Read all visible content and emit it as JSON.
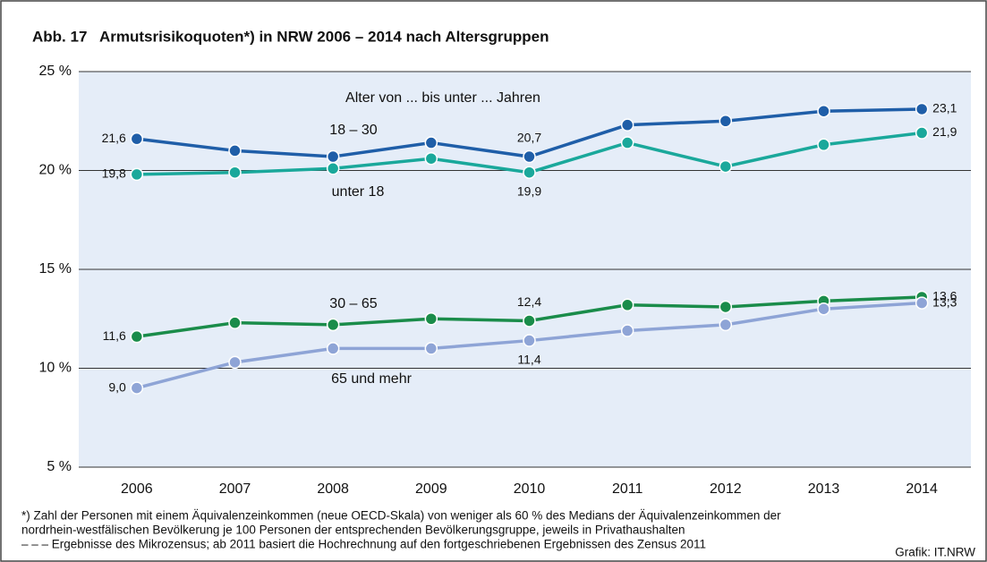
{
  "chart_data": {
    "type": "line",
    "title": "Abb. 17   Armutsrisikoquoten*) in NRW 2006 – 2014 nach Altersgruppen",
    "annotation": "Alter von ... bis unter ... Jahren",
    "categories": [
      "2006",
      "2007",
      "2008",
      "2009",
      "2010",
      "2011",
      "2012",
      "2013",
      "2014"
    ],
    "series": [
      {
        "name": "18 – 30",
        "color": "#1f5ea8",
        "values": [
          21.6,
          21.0,
          20.7,
          21.4,
          20.7,
          22.3,
          22.5,
          23.0,
          23.1
        ],
        "value_labels": [
          "21,6",
          null,
          null,
          null,
          "20,7",
          null,
          null,
          null,
          "23,1"
        ]
      },
      {
        "name": "unter 18",
        "color": "#1aa89b",
        "values": [
          19.8,
          19.9,
          20.1,
          20.6,
          19.9,
          21.4,
          20.2,
          21.3,
          21.9
        ],
        "value_labels": [
          "19,8",
          null,
          null,
          null,
          "19,9",
          null,
          null,
          null,
          "21,9"
        ]
      },
      {
        "name": "30 – 65",
        "color": "#1a8c4a",
        "values": [
          11.6,
          12.3,
          12.2,
          12.5,
          12.4,
          13.2,
          13.1,
          13.4,
          13.6
        ],
        "value_labels": [
          "11,6",
          null,
          null,
          null,
          "12,4",
          null,
          null,
          null,
          "13,6"
        ]
      },
      {
        "name": "65 und mehr",
        "color": "#8ea4d6",
        "values": [
          9.0,
          10.3,
          11.0,
          11.0,
          11.4,
          11.9,
          12.2,
          13.0,
          13.3
        ],
        "value_labels": [
          "9,0",
          null,
          null,
          null,
          "11,4",
          null,
          null,
          null,
          "13,3"
        ]
      }
    ],
    "ylim": [
      5,
      25
    ],
    "yticks": [
      {
        "value": 5,
        "label": "5 %"
      },
      {
        "value": 10,
        "label": "10 %"
      },
      {
        "value": 15,
        "label": "15 %"
      },
      {
        "value": 20,
        "label": "20 %"
      },
      {
        "value": 25,
        "label": "25 %"
      }
    ],
    "grid": true,
    "footnotes": [
      "*) Zahl der Personen mit einem Äquivalenzeinkommen (neue OECD-Skala) von weniger als 60 % des Medians der Äquivalenzeinkommen der",
      "nordrhein-westfälischen Bevölkerung je 100 Personen der entsprechenden Bevölkerungsgruppe, jeweils in Privathaushalten",
      "– – – Ergebnisse des Mikrozensus; ab 2011 basiert die Hochrechnung auf den fortgeschriebenen Ergebnissen des Zensus 2011"
    ],
    "source": "Grafik: IT.NRW"
  }
}
